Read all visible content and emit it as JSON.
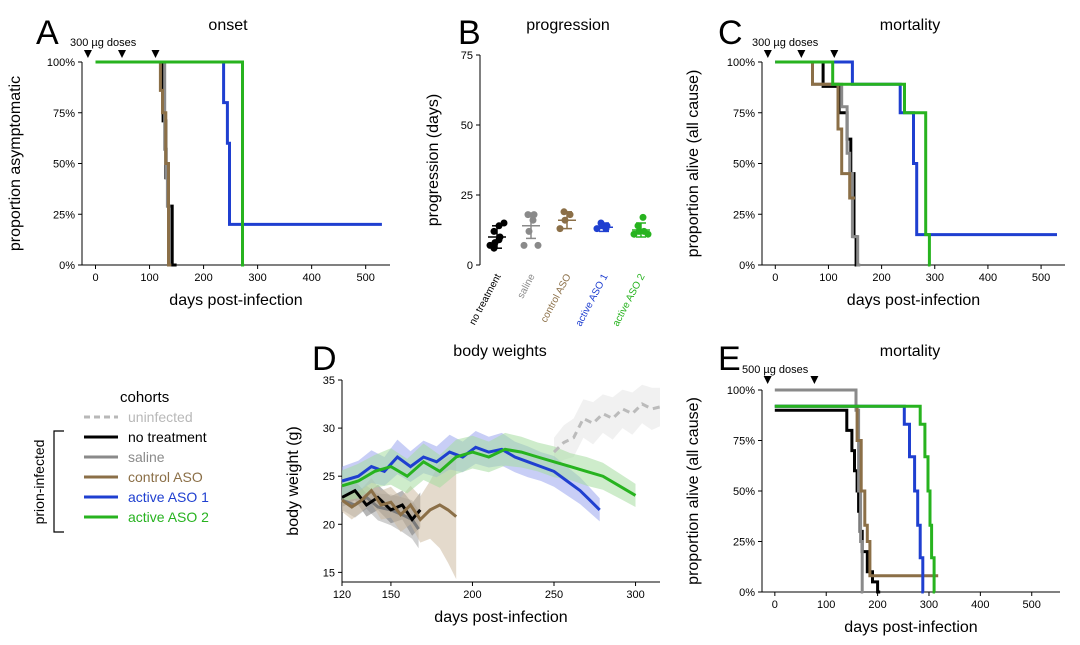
{
  "panels": {
    "A": {
      "letter": "A",
      "title": "onset",
      "dose_label": "300 µg doses"
    },
    "B": {
      "letter": "B",
      "title": "progression"
    },
    "C": {
      "letter": "C",
      "title": "mortality",
      "dose_label": "300 µg doses"
    },
    "D": {
      "letter": "D",
      "title": "body weights"
    },
    "E": {
      "letter": "E",
      "title": "mortality",
      "dose_label": "500 µg doses"
    }
  },
  "legend": {
    "title": "cohorts",
    "group_label": "prion-infected",
    "items": [
      {
        "label": "uninfected",
        "color": "#b8b8b8",
        "dashed": true
      },
      {
        "label": "no treatment",
        "color": "#000000"
      },
      {
        "label": "saline",
        "color": "#8a8a8a"
      },
      {
        "label": "control ASO",
        "color": "#8b6f47"
      },
      {
        "label": "active ASO 1",
        "color": "#1f3fd0"
      },
      {
        "label": "active ASO 2",
        "color": "#27b31f"
      }
    ]
  },
  "chart_data": [
    {
      "id": "A",
      "type": "line",
      "title": "onset",
      "xlabel": "days post-infection",
      "ylabel": "proportion asymptomatic",
      "xlim": [
        -25,
        545
      ],
      "ylim": [
        0,
        1
      ],
      "xticks": [
        0,
        100,
        200,
        300,
        400,
        500
      ],
      "xtick_labels": [
        "0",
        "100",
        "200",
        "300",
        "400",
        "500"
      ],
      "yticks": [
        0,
        0.25,
        0.5,
        0.75,
        1
      ],
      "ytick_labels": [
        "0%",
        "25%",
        "50%",
        "75%",
        "100%"
      ],
      "dose_days": [
        -14,
        49,
        111
      ],
      "series": [
        {
          "key": "no_treatment",
          "color": "#000000",
          "x": [
            0,
            125,
            125,
            130,
            130,
            134,
            134,
            142,
            142,
            150
          ],
          "y": [
            1,
            1,
            0.71,
            0.71,
            0.43,
            0.43,
            0.29,
            0.29,
            0,
            0
          ]
        },
        {
          "key": "saline",
          "color": "#8a8a8a",
          "x": [
            0,
            128,
            128,
            131,
            131,
            133,
            133,
            136,
            136,
            140
          ],
          "y": [
            1,
            1,
            0.57,
            0.57,
            0.43,
            0.43,
            0.29,
            0.29,
            0,
            0
          ]
        },
        {
          "key": "control_aso",
          "color": "#8b6f47",
          "x": [
            0,
            120,
            120,
            124,
            124,
            130,
            130,
            135,
            135,
            140
          ],
          "y": [
            1,
            1,
            0.86,
            0.86,
            0.75,
            0.75,
            0.5,
            0.5,
            0,
            0
          ]
        },
        {
          "key": "active_aso_1",
          "color": "#1f3fd0",
          "x": [
            0,
            237,
            237,
            244,
            244,
            248,
            248,
            252,
            252,
            530
          ],
          "y": [
            1,
            1,
            0.8,
            0.8,
            0.6,
            0.6,
            0.2,
            0.2,
            0.2,
            0.2
          ]
        },
        {
          "key": "active_aso_2",
          "color": "#27b31f",
          "x": [
            0,
            272,
            272,
            275
          ],
          "y": [
            1,
            1,
            0,
            0
          ]
        }
      ]
    },
    {
      "id": "B",
      "type": "scatter",
      "title": "progression",
      "ylabel": "progression (days)",
      "ylim": [
        0,
        75
      ],
      "yticks": [
        0,
        25,
        50,
        75
      ],
      "ytick_labels": [
        "0",
        "25",
        "50",
        "75"
      ],
      "categories": [
        "no treatment",
        "saline",
        "control ASO",
        "active ASO 1",
        "active ASO 2"
      ],
      "colors": [
        "#000000",
        "#8a8a8a",
        "#8b6f47",
        "#1f3fd0",
        "#27b31f"
      ],
      "means": [
        10,
        14,
        16,
        13.5,
        12.5
      ],
      "sd": [
        4,
        4.5,
        3,
        1.5,
        2.5
      ],
      "points": [
        [
          7,
          8,
          10,
          12,
          14,
          15,
          6,
          9
        ],
        [
          7,
          12,
          18,
          18,
          16,
          7
        ],
        [
          13,
          16,
          18,
          19
        ],
        [
          13,
          14,
          14,
          15,
          13
        ],
        [
          11,
          12,
          12,
          14,
          17,
          11
        ]
      ]
    },
    {
      "id": "C",
      "type": "line",
      "title": "mortality",
      "xlabel": "days post-infection",
      "ylabel": "proportion alive (all cause)",
      "xlim": [
        -25,
        545
      ],
      "ylim": [
        0,
        1
      ],
      "xticks": [
        0,
        100,
        200,
        300,
        400,
        500
      ],
      "xtick_labels": [
        "0",
        "100",
        "200",
        "300",
        "400",
        "500"
      ],
      "yticks": [
        0,
        0.25,
        0.5,
        0.75,
        1
      ],
      "ytick_labels": [
        "0%",
        "25%",
        "50%",
        "75%",
        "100%"
      ],
      "dose_days": [
        -14,
        49,
        111
      ],
      "series": [
        {
          "key": "no_treatment",
          "color": "#000000",
          "x": [
            0,
            90,
            90,
            120,
            120,
            135,
            135,
            142,
            142,
            148,
            148,
            152,
            152,
            155
          ],
          "y": [
            1,
            1,
            0.88,
            0.88,
            0.75,
            0.75,
            0.62,
            0.62,
            0.45,
            0.45,
            0.14,
            0.14,
            0,
            0
          ]
        },
        {
          "key": "saline",
          "color": "#8a8a8a",
          "x": [
            0,
            70,
            70,
            125,
            125,
            135,
            135,
            140,
            140,
            145,
            145,
            155,
            155,
            160
          ],
          "y": [
            1,
            1,
            0.89,
            0.89,
            0.78,
            0.78,
            0.55,
            0.55,
            0.45,
            0.45,
            0.14,
            0.14,
            0,
            0
          ]
        },
        {
          "key": "control_aso",
          "color": "#8b6f47",
          "x": [
            0,
            70,
            70,
            118,
            118,
            125,
            125,
            140,
            140,
            150
          ],
          "y": [
            1,
            1,
            0.89,
            0.89,
            0.67,
            0.67,
            0.45,
            0.45,
            0.33,
            0.33
          ]
        },
        {
          "key": "active_aso_1",
          "color": "#1f3fd0",
          "x": [
            0,
            145,
            145,
            235,
            235,
            260,
            260,
            266,
            266,
            530
          ],
          "y": [
            1,
            1,
            0.89,
            0.89,
            0.75,
            0.75,
            0.5,
            0.5,
            0.15,
            0.15
          ]
        },
        {
          "key": "active_aso_2",
          "color": "#27b31f",
          "x": [
            0,
            108,
            108,
            243,
            243,
            283,
            283,
            290,
            290,
            292
          ],
          "y": [
            1,
            1,
            0.89,
            0.89,
            0.75,
            0.75,
            0.15,
            0.15,
            0,
            0
          ]
        }
      ]
    },
    {
      "id": "D",
      "type": "line",
      "title": "body weights",
      "xlabel": "days post-infection",
      "ylabel": "body weight (g)",
      "xlim": [
        120,
        315
      ],
      "ylim": [
        14,
        35
      ],
      "xticks": [
        120,
        150,
        200,
        250,
        300
      ],
      "xtick_labels": [
        "120",
        "150",
        "200",
        "250",
        "300"
      ],
      "yticks": [
        15,
        20,
        25,
        30,
        35
      ],
      "ytick_labels": [
        "15",
        "20",
        "25",
        "30",
        "35"
      ],
      "series": [
        {
          "key": "uninfected",
          "color": "#bbbbbb",
          "band": "#e6e6e6",
          "dashed": true,
          "x": [
            250,
            256,
            262,
            268,
            274,
            280,
            286,
            292,
            298,
            304,
            310,
            315
          ],
          "y": [
            27.5,
            28.5,
            29,
            31,
            30.5,
            31.5,
            31,
            32,
            31.5,
            32.5,
            32,
            32.2
          ],
          "sd": [
            1.5,
            1.8,
            2,
            2,
            2.2,
            2,
            2.2,
            2,
            2.2,
            2,
            2.2,
            2
          ]
        },
        {
          "key": "saline",
          "color": "#7a7a7a",
          "band": "#a8a8a8",
          "x": [
            120,
            128,
            135,
            142,
            150,
            157,
            163,
            167
          ],
          "y": [
            22.5,
            22,
            22.8,
            21.8,
            21.5,
            21,
            20.5,
            19.5
          ],
          "sd": [
            1,
            1.3,
            1.2,
            1.4,
            1.6,
            1.8,
            2,
            2
          ]
        },
        {
          "key": "no_treatment",
          "color": "#000000",
          "band": "#7a7a7a",
          "x": [
            120,
            128,
            135,
            142,
            150,
            157,
            163,
            168
          ],
          "y": [
            22.8,
            23.5,
            22,
            22.8,
            21.5,
            22,
            20.5,
            21.5
          ],
          "sd": [
            1,
            1,
            1.2,
            1.3,
            1.4,
            1.5,
            1.7,
            1.8
          ]
        },
        {
          "key": "control_aso",
          "color": "#8b6f47",
          "band": "#cdbba2",
          "x": [
            120,
            126,
            132,
            138,
            144,
            150,
            156,
            162,
            168,
            174,
            180,
            185,
            190
          ],
          "y": [
            22.5,
            21.8,
            22.5,
            23.5,
            22,
            22.3,
            21,
            22,
            20.5,
            21.5,
            22,
            21.5,
            20.8
          ],
          "sd": [
            1.2,
            1.3,
            1.2,
            1.3,
            1.5,
            1.6,
            1.8,
            2,
            2.4,
            3,
            4.5,
            5.5,
            6.5
          ]
        },
        {
          "key": "active_aso_1",
          "color": "#1f3fd0",
          "band": "#9aa6ee",
          "x": [
            120,
            130,
            138,
            146,
            154,
            162,
            170,
            178,
            186,
            194,
            202,
            210,
            218,
            226,
            234,
            242,
            250,
            258,
            266,
            272,
            278
          ],
          "y": [
            24.5,
            25,
            26,
            25.5,
            27,
            26,
            27,
            26.5,
            27.5,
            27,
            28,
            27.5,
            27.8,
            27,
            26.5,
            26,
            25.5,
            24.5,
            23.5,
            22.5,
            21.5
          ],
          "sd": [
            1.5,
            1.6,
            1.7,
            1.5,
            1.8,
            1.6,
            1.7,
            1.6,
            1.8,
            1.6,
            1.7,
            1.6,
            1.7,
            1.6,
            1.6,
            1.5,
            1.6,
            1.5,
            1.4,
            1.3,
            1.2
          ]
        },
        {
          "key": "active_aso_2",
          "color": "#27b31f",
          "band": "#a6dca0",
          "x": [
            120,
            130,
            140,
            150,
            160,
            170,
            180,
            190,
            200,
            210,
            220,
            230,
            240,
            250,
            260,
            270,
            280,
            290,
            300
          ],
          "y": [
            24,
            24.5,
            25.5,
            26,
            25,
            26.5,
            25.5,
            27,
            27.5,
            27,
            27.8,
            27.5,
            27,
            26.5,
            26,
            25.5,
            25,
            24,
            23
          ],
          "sd": [
            1.6,
            1.8,
            1.7,
            1.9,
            1.8,
            1.9,
            1.7,
            1.8,
            1.7,
            1.6,
            1.7,
            1.6,
            1.5,
            1.6,
            1.4,
            1.5,
            1.4,
            1.3,
            1.2
          ]
        }
      ]
    },
    {
      "id": "E",
      "type": "line",
      "title": "mortality",
      "xlabel": "days post-infection",
      "ylabel": "proportion alive (all cause)",
      "xlim": [
        -25,
        555
      ],
      "ylim": [
        0,
        1
      ],
      "xticks": [
        0,
        100,
        200,
        300,
        400,
        500
      ],
      "xtick_labels": [
        "0",
        "100",
        "200",
        "300",
        "400",
        "500"
      ],
      "yticks": [
        0,
        0.25,
        0.5,
        0.75,
        1
      ],
      "ytick_labels": [
        "0%",
        "25%",
        "50%",
        "75%",
        "100%"
      ],
      "dose_days": [
        -14,
        77
      ],
      "series": [
        {
          "key": "no_treatment",
          "color": "#000000",
          "x": [
            0,
            140,
            140,
            150,
            150,
            155,
            155,
            160,
            160,
            163,
            163,
            166,
            166,
            170,
            170,
            180,
            180,
            190,
            190,
            200,
            200,
            205
          ],
          "y": [
            0.9,
            0.9,
            0.8,
            0.8,
            0.7,
            0.7,
            0.6,
            0.6,
            0.5,
            0.5,
            0.4,
            0.4,
            0.3,
            0.3,
            0.2,
            0.2,
            0.1,
            0.1,
            0.05,
            0.05,
            0,
            0
          ]
        },
        {
          "key": "saline",
          "color": "#8a8a8a",
          "x": [
            0,
            158,
            158,
            163,
            163,
            167,
            167,
            170,
            170,
            172
          ],
          "y": [
            1,
            1,
            0.9,
            0.9,
            0.5,
            0.5,
            0.25,
            0.25,
            0,
            0
          ]
        },
        {
          "key": "control_aso",
          "color": "#8b6f47",
          "x": [
            0,
            160,
            160,
            168,
            168,
            175,
            175,
            180,
            180,
            185,
            185,
            318
          ],
          "y": [
            0.92,
            0.92,
            0.75,
            0.75,
            0.5,
            0.5,
            0.33,
            0.33,
            0.25,
            0.25,
            0.08,
            0.08
          ]
        },
        {
          "key": "active_aso_1",
          "color": "#1f3fd0",
          "x": [
            0,
            252,
            252,
            262,
            262,
            272,
            272,
            278,
            278,
            283,
            283,
            288,
            288,
            290
          ],
          "y": [
            0.92,
            0.92,
            0.83,
            0.83,
            0.67,
            0.67,
            0.5,
            0.5,
            0.33,
            0.33,
            0.17,
            0.17,
            0,
            0
          ]
        },
        {
          "key": "active_aso_2",
          "color": "#27b31f",
          "x": [
            0,
            283,
            283,
            292,
            292,
            298,
            298,
            302,
            302,
            305,
            305,
            310,
            310,
            312
          ],
          "y": [
            0.92,
            0.92,
            0.83,
            0.83,
            0.67,
            0.67,
            0.5,
            0.5,
            0.33,
            0.33,
            0.17,
            0.17,
            0,
            0
          ]
        }
      ]
    }
  ]
}
